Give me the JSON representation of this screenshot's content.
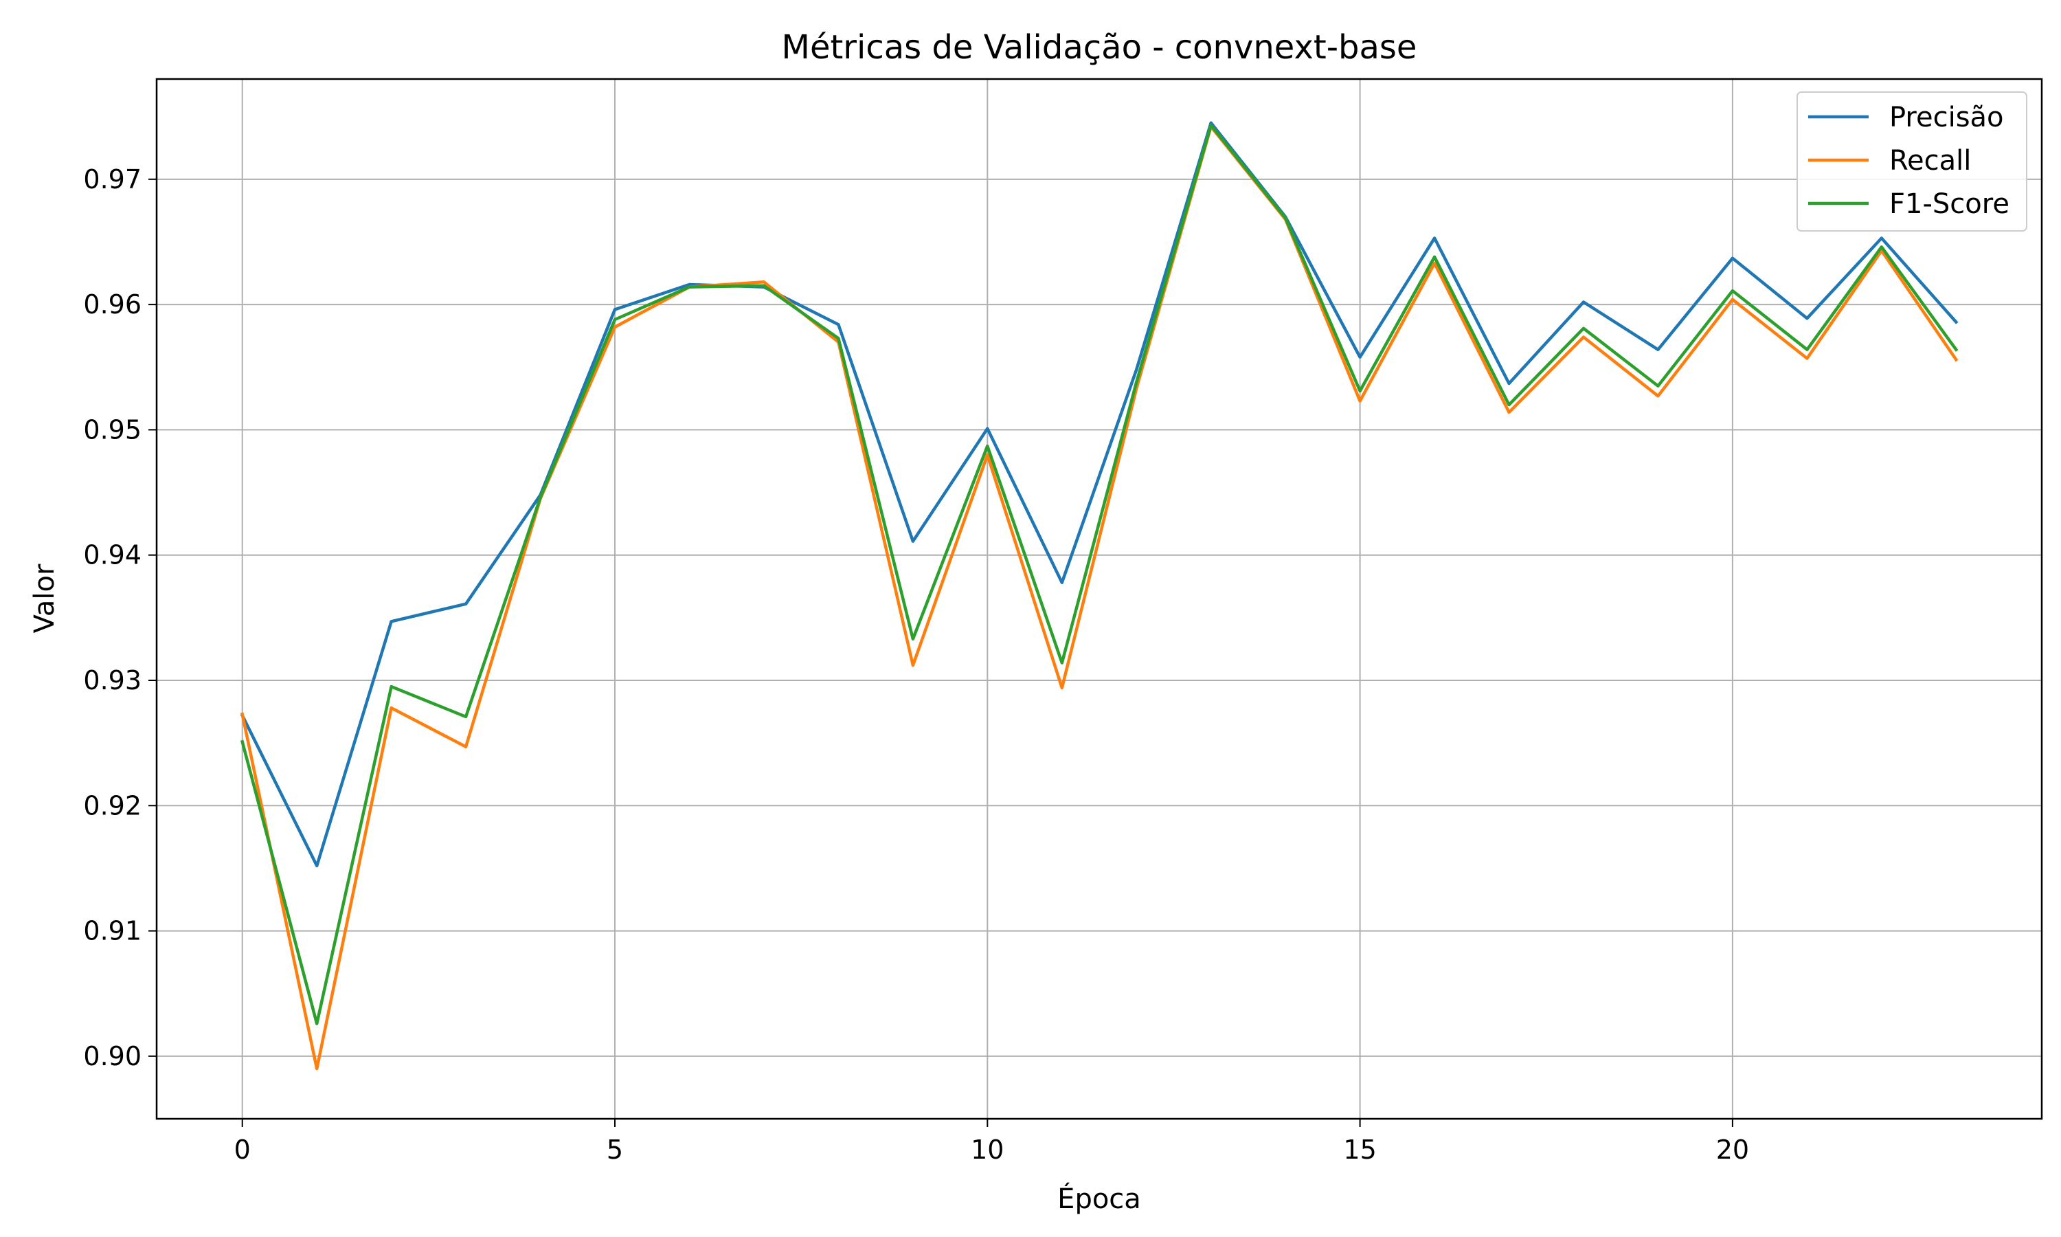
{
  "chart_data": {
    "type": "line",
    "title": "Métricas de Validação - convnext-base",
    "xlabel": "Época",
    "ylabel": "Valor",
    "xlim": [
      -1.15,
      24.15
    ],
    "ylim": [
      0.895,
      0.978
    ],
    "xticks": [
      0,
      5,
      10,
      15,
      20
    ],
    "yticks": [
      0.9,
      0.91,
      0.92,
      0.93,
      0.94,
      0.95,
      0.96,
      0.97
    ],
    "ytick_labels": [
      "0.90",
      "0.91",
      "0.92",
      "0.93",
      "0.94",
      "0.95",
      "0.96",
      "0.97"
    ],
    "grid": true,
    "legend_position": "top-right",
    "x": [
      0,
      1,
      2,
      3,
      4,
      5,
      6,
      7,
      8,
      9,
      10,
      11,
      12,
      13,
      14,
      15,
      16,
      17,
      18,
      19,
      20,
      21,
      22,
      23
    ],
    "series": [
      {
        "name": "Precisão",
        "color": "#1f77b4",
        "values": [
          0.9272,
          0.9152,
          0.9347,
          0.9361,
          0.9448,
          0.9596,
          0.9616,
          0.9614,
          0.9584,
          0.9411,
          0.9501,
          0.9378,
          0.9548,
          0.9745,
          0.967,
          0.9558,
          0.9653,
          0.9537,
          0.9602,
          0.9564,
          0.9637,
          0.9589,
          0.9653,
          0.9586
        ]
      },
      {
        "name": "Recall",
        "color": "#ff7f0e",
        "values": [
          0.9273,
          0.899,
          0.9278,
          0.9247,
          0.9445,
          0.9582,
          0.9614,
          0.9618,
          0.957,
          0.9312,
          0.948,
          0.9294,
          0.9533,
          0.9742,
          0.9668,
          0.9523,
          0.9633,
          0.9514,
          0.9574,
          0.9527,
          0.9604,
          0.9557,
          0.9643,
          0.9556
        ]
      },
      {
        "name": "F1-Score",
        "color": "#2ca02c",
        "values": [
          0.9251,
          0.9026,
          0.9295,
          0.9271,
          0.9446,
          0.9588,
          0.9614,
          0.9615,
          0.9573,
          0.9333,
          0.9487,
          0.9314,
          0.9538,
          0.9743,
          0.9669,
          0.9531,
          0.9638,
          0.952,
          0.9581,
          0.9535,
          0.9611,
          0.9564,
          0.9646,
          0.9564
        ]
      }
    ]
  }
}
